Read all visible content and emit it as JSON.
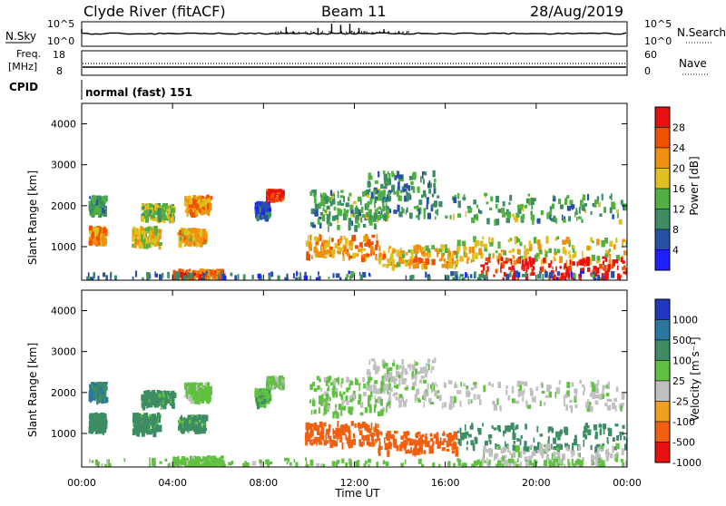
{
  "header": {
    "station": "Clyde River (fitACF)",
    "beam": "Beam 11",
    "date": "28/Aug/2019"
  },
  "panels": {
    "nsky_label": "N.Sky",
    "nsearch_label": "N.Search",
    "freq_label_1": "Freq.",
    "freq_label_2": "[MHz]",
    "nave_label": "Nave",
    "cpid_label": "CPID",
    "cpid_value": "normal (fast) 151",
    "nsky_ticks_left": [
      "10^5",
      "10^0"
    ],
    "nsky_ticks_right": [
      "10^5",
      "10^0"
    ],
    "freq_ticks_left": [
      "18",
      "8"
    ],
    "nave_ticks_right": [
      "60",
      "0"
    ]
  },
  "axes": {
    "ylabel": "Slant Range [km]",
    "xlabel": "Time UT",
    "y_ticks": [
      "1000",
      "2000",
      "3000",
      "4000"
    ],
    "x_ticks": [
      "00:00",
      "04:00",
      "08:00",
      "12:00",
      "16:00",
      "20:00",
      "00:00"
    ]
  },
  "power_scale": {
    "label": "Power [dB]",
    "ticks": [
      "4",
      "8",
      "12",
      "16",
      "20",
      "24",
      "28"
    ],
    "colors": [
      "#2020ff",
      "#2850a8",
      "#3c8c64",
      "#50b040",
      "#e0c020",
      "#f09010",
      "#f05000",
      "#e81010"
    ]
  },
  "velocity_scale": {
    "label": "Velocity [m s⁻¹]",
    "ticks": [
      "1000",
      "500",
      "100",
      "25",
      "-25",
      "-100",
      "-500",
      "-1000"
    ],
    "colors": [
      "#2038c0",
      "#2878a0",
      "#3c8c64",
      "#60c040",
      "#c0c0c0",
      "#f0a020",
      "#f06010",
      "#e81010"
    ]
  },
  "chart_data": {
    "type": "heatmap",
    "title": "Clyde River (fitACF) Beam 11 28/Aug/2019",
    "xlabel": "Time UT",
    "ylabel": "Slant Range [km]",
    "xlim": [
      0,
      24
    ],
    "ylim": [
      180,
      4500
    ],
    "x_ticks": [
      "00:00",
      "04:00",
      "08:00",
      "12:00",
      "16:00",
      "20:00",
      "00:00"
    ],
    "y_ticks": [
      1000,
      2000,
      3000,
      4000
    ],
    "panels": [
      "Power [dB]",
      "Velocity [m s-1]"
    ],
    "power_range": [
      0,
      32
    ],
    "velocity_range": [
      -1000,
      1000
    ],
    "scatter_regions": [
      {
        "t0": 0.3,
        "t1": 1.0,
        "r0": 1050,
        "r1": 1450,
        "power": 22,
        "velocity": 200
      },
      {
        "t0": 0.3,
        "t1": 1.0,
        "r0": 1800,
        "r1": 2200,
        "power": 10,
        "velocity": 500
      },
      {
        "t0": 2.2,
        "t1": 3.4,
        "r0": 1000,
        "r1": 1450,
        "power": 18,
        "velocity": 150
      },
      {
        "t0": 2.6,
        "t1": 4.0,
        "r0": 1650,
        "r1": 2000,
        "power": 14,
        "velocity": 150
      },
      {
        "t0": 4.2,
        "t1": 5.4,
        "r0": 1050,
        "r1": 1400,
        "power": 20,
        "velocity": 150
      },
      {
        "t0": 4.5,
        "t1": 5.6,
        "r0": 1800,
        "r1": 2200,
        "power": 22,
        "velocity": 50
      },
      {
        "t0": 4.0,
        "t1": 6.2,
        "r0": 180,
        "r1": 400,
        "power": 26,
        "velocity": 50
      },
      {
        "t0": 7.6,
        "t1": 8.2,
        "r0": 1700,
        "r1": 2050,
        "power": 6,
        "velocity": 80
      },
      {
        "t0": 8.1,
        "t1": 8.8,
        "r0": 2150,
        "r1": 2350,
        "power": 28,
        "velocity": 30
      },
      {
        "t0": 9.8,
        "t1": 13.0,
        "r0": 700,
        "r1": 1250,
        "power": 22,
        "velocity": -200
      },
      {
        "t0": 10.0,
        "t1": 13.5,
        "r0": 1450,
        "r1": 2350,
        "power": 12,
        "velocity": 40
      },
      {
        "t0": 12.5,
        "t1": 15.5,
        "r0": 1700,
        "r1": 2800,
        "power": 10,
        "velocity": 10
      },
      {
        "t0": 13.0,
        "t1": 16.5,
        "r0": 500,
        "r1": 1000,
        "power": 20,
        "velocity": -300
      },
      {
        "t0": 15.5,
        "t1": 24.0,
        "r0": 1600,
        "r1": 2250,
        "power": 12,
        "velocity": 10
      },
      {
        "t0": 16.5,
        "t1": 24.0,
        "r0": 600,
        "r1": 1200,
        "power": 18,
        "velocity": 200
      },
      {
        "t0": 17.5,
        "t1": 24.0,
        "r0": 180,
        "r1": 700,
        "power": 30,
        "velocity": 10
      },
      {
        "t0": 0.0,
        "t1": 24.0,
        "r0": 180,
        "r1": 350,
        "power": 8,
        "velocity": 50
      }
    ]
  }
}
